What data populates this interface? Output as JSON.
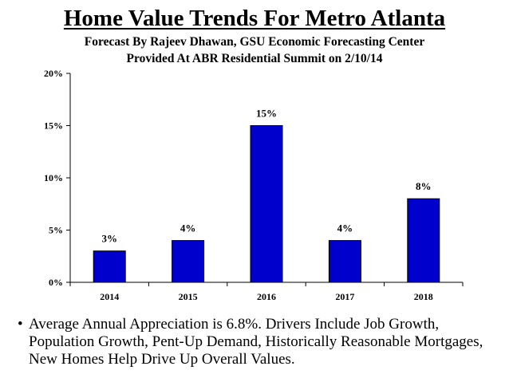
{
  "header": {
    "title": "Home Value Trends For Metro Atlanta",
    "subtitle_line1": "Forecast By Rajeev Dhawan, GSU Economic Forecasting Center",
    "subtitle_line2": "Provided At ABR Residential Summit on 2/10/14"
  },
  "chart_data": {
    "type": "bar",
    "categories": [
      "2014",
      "2015",
      "2016",
      "2017",
      "2018"
    ],
    "values": [
      3,
      4,
      15,
      4,
      8
    ],
    "data_labels": [
      "3%",
      "4%",
      "15%",
      "4%",
      "8%"
    ],
    "yticks": [
      0,
      5,
      10,
      15,
      20
    ],
    "ytick_labels": [
      "0%",
      "5%",
      "10%",
      "15%",
      "20%"
    ],
    "ylim": [
      0,
      20
    ],
    "xlabel": "",
    "ylabel": "",
    "bar_color": "#0000CC",
    "grid": false,
    "legend": "none"
  },
  "note": {
    "bullet": "•",
    "text": "Average Annual Appreciation is 6.8%.  Drivers Include Job Growth, Population Growth, Pent-Up Demand, Historically Reasonable Mortgages, New Homes Help Drive Up Overall Values."
  }
}
